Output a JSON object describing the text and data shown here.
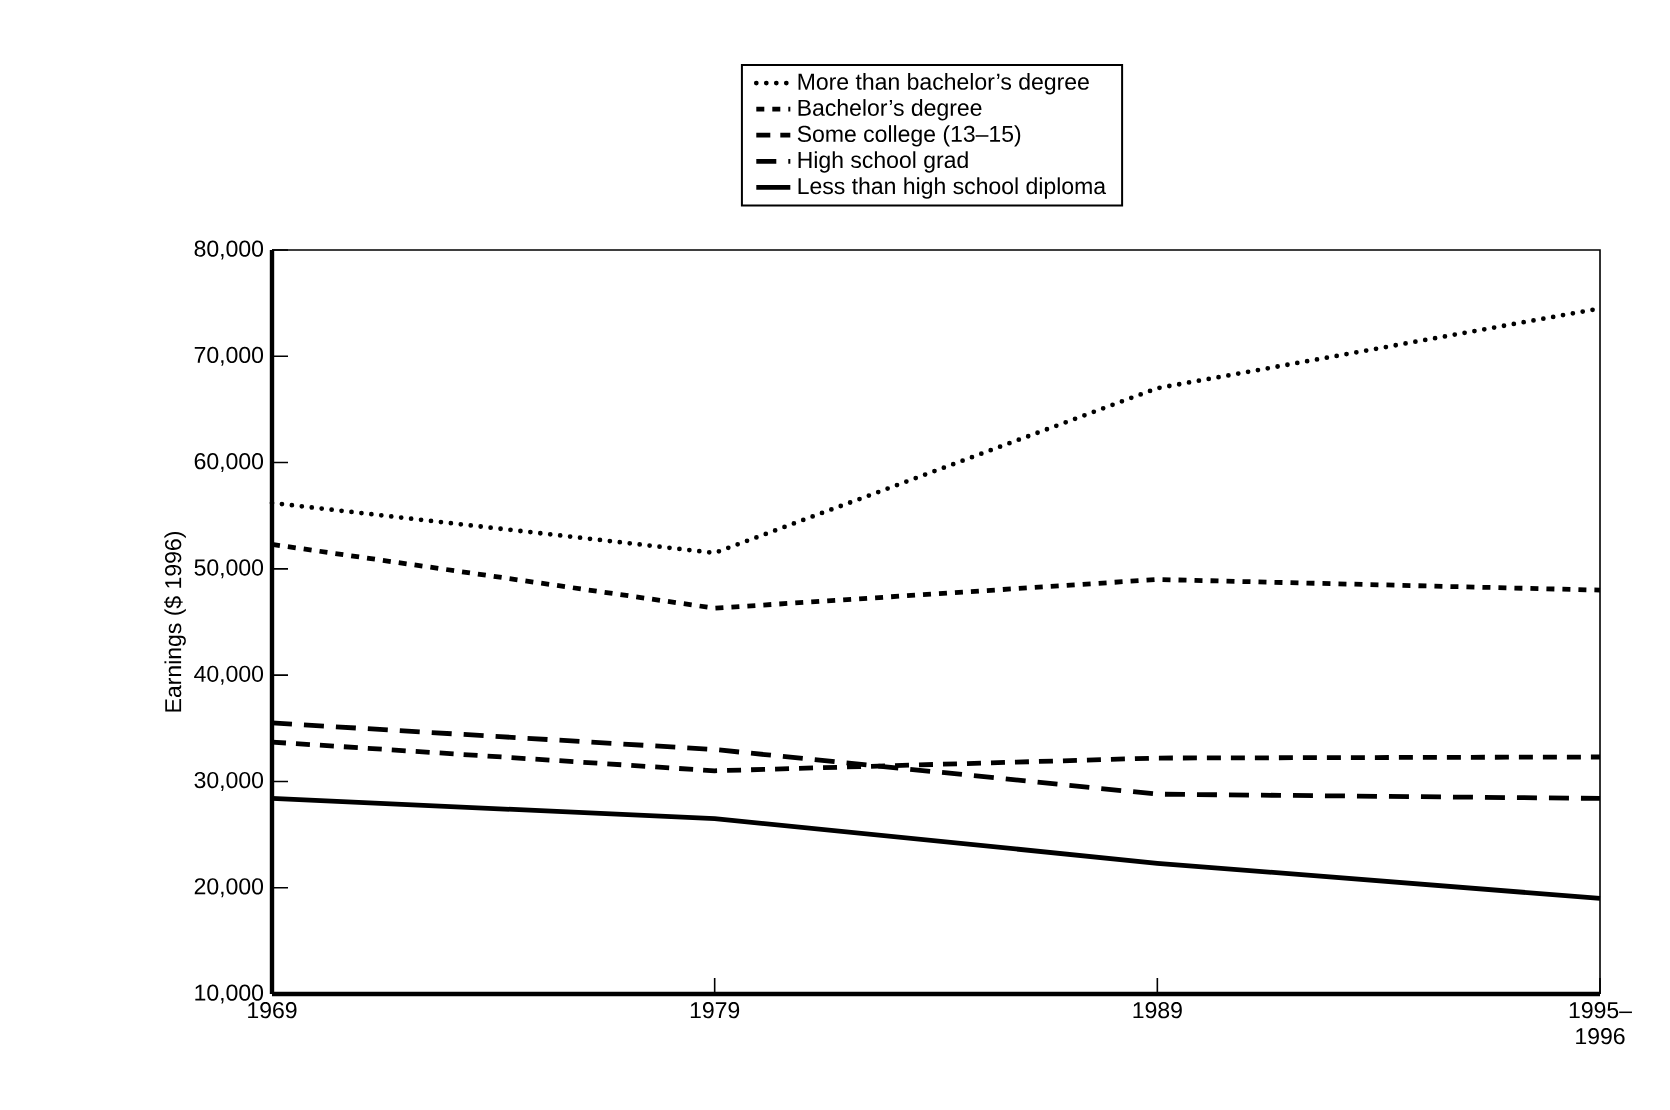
{
  "chart_data": {
    "type": "line",
    "ylabel": "Earnings ($ 1996)",
    "categories": [
      "1969",
      "1979",
      "1989",
      "1995–1996"
    ],
    "series": [
      {
        "name": "More than bachelor’s degree",
        "color": "#000000",
        "line_style": "dotted",
        "values": [
          56200,
          51500,
          67000,
          74500
        ]
      },
      {
        "name": "Bachelor’s degree",
        "color": "#000000",
        "line_style": "dashed",
        "values": [
          52300,
          46300,
          49000,
          48000
        ]
      },
      {
        "name": "Some college (13–15)",
        "color": "#000000",
        "line_style": "dashed",
        "values": [
          33700,
          31000,
          32200,
          32300
        ]
      },
      {
        "name": "High school grad",
        "color": "#000000",
        "line_style": "dashed",
        "values": [
          35500,
          33000,
          28800,
          28400
        ]
      },
      {
        "name": "Less than high school diploma",
        "color": "#000000",
        "line_style": "solid",
        "values": [
          28400,
          26500,
          22300,
          19000
        ]
      }
    ],
    "ylim": [
      10000,
      80000
    ],
    "yticks": [
      {
        "value": 10000,
        "label": "10,000"
      },
      {
        "value": 20000,
        "label": "20,000"
      },
      {
        "value": 30000,
        "label": "30,000"
      },
      {
        "value": 40000,
        "label": "40,000"
      },
      {
        "value": 50000,
        "label": "50,000"
      },
      {
        "value": 60000,
        "label": "60,000"
      },
      {
        "value": 70000,
        "label": "70,000"
      },
      {
        "value": 80000,
        "label": "80,000"
      }
    ],
    "grid": false,
    "legend": "top",
    "marker": "none"
  }
}
